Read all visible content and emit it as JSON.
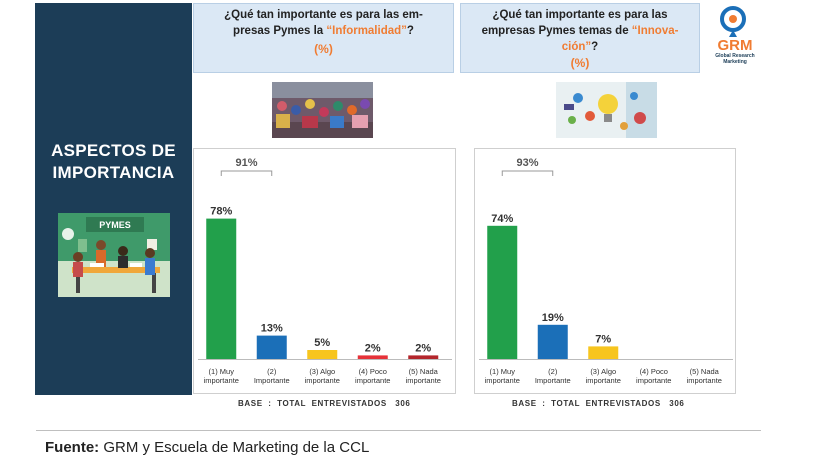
{
  "sidebar": {
    "title_line1": "ASPECTOS DE",
    "title_line2": "IMPORTANCIA",
    "illustration_label": "PYMES"
  },
  "question1": {
    "text_a": "¿Qué tan importante es para las em-",
    "text_b": "presas Pymes la ",
    "highlight": "“Informalidad”",
    "text_c": "?",
    "unit": "(%)"
  },
  "question2": {
    "text_a": "¿Qué tan importante es para las",
    "text_b": "empresas Pymes temas de ",
    "highlight_a": "“Innova-",
    "highlight_b": "ción”",
    "text_c": "?",
    "unit": "(%)"
  },
  "logo": {
    "brand": "GRM",
    "line1": "Global Research",
    "line2": "Marketing"
  },
  "base1": "BASE  :  TOTAL  ENTREVISTADOS   306",
  "base2": "BASE  :  TOTAL  ENTREVISTADOS   306",
  "source": {
    "label": "Fuente:",
    "text": " GRM y Escuela de Marketing de la CCL"
  },
  "colors": {
    "green": "#22a04b",
    "blue": "#1b6fb8",
    "yellow": "#f7c51e",
    "red": "#e63239",
    "darkred": "#b3262c",
    "navy": "#1c3d57",
    "orange": "#f07c32"
  },
  "chart_data": [
    {
      "type": "bar",
      "title": "¿Qué tan importante es para las empresas Pymes la “Informalidad”? (%)",
      "categories": [
        [
          "(1) Muy",
          "importante"
        ],
        [
          "(2)",
          "Importante"
        ],
        [
          "(3) Algo",
          "importante"
        ],
        [
          "(4) Poco",
          "importante"
        ],
        [
          "(5) Nada",
          "importante"
        ]
      ],
      "values": [
        78,
        13,
        5,
        2,
        2
      ],
      "labels": [
        "78%",
        "13%",
        "5%",
        "2%",
        "2%"
      ],
      "colors": [
        "#22a04b",
        "#1b6fb8",
        "#f7c51e",
        "#e63239",
        "#b3262c"
      ],
      "bracket_label": "91%",
      "ylim": [
        0,
        100
      ]
    },
    {
      "type": "bar",
      "title": "¿Qué tan importante es para las empresas Pymes temas de “Innovación”? (%)",
      "categories": [
        [
          "(1) Muy",
          "importante"
        ],
        [
          "(2)",
          "Importante"
        ],
        [
          "(3) Algo",
          "importante"
        ],
        [
          "(4) Poco",
          "importante"
        ],
        [
          "(5) Nada",
          "importante"
        ]
      ],
      "values": [
        74,
        19,
        7,
        null,
        null
      ],
      "labels": [
        "74%",
        "19%",
        "7%",
        "",
        ""
      ],
      "colors": [
        "#22a04b",
        "#1b6fb8",
        "#f7c51e",
        "#e63239",
        "#b3262c"
      ],
      "bracket_label": "93%",
      "ylim": [
        0,
        100
      ]
    }
  ]
}
